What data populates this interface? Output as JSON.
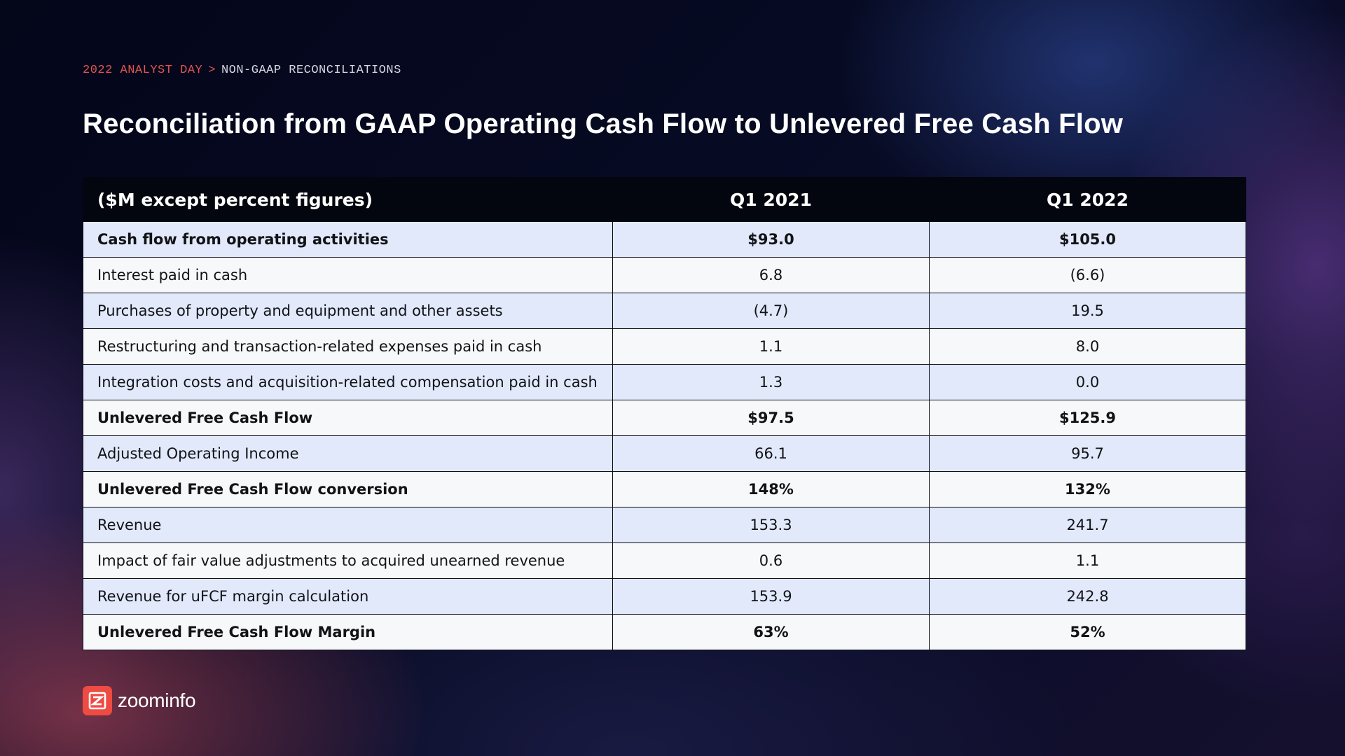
{
  "breadcrumb": {
    "section": "2022 ANALYST DAY",
    "separator": ">",
    "page": "NON-GAAP RECONCILIATIONS"
  },
  "title": "Reconciliation from GAAP Operating Cash Flow to Unlevered Free Cash Flow",
  "table": {
    "columns": [
      "($M except percent figures)",
      "Q1 2021",
      "Q1 2022"
    ],
    "rows": [
      {
        "label": "Cash flow from operating activities",
        "q1_2021": "$93.0",
        "q1_2022": "$105.0",
        "bold": true
      },
      {
        "label": "Interest paid in cash",
        "q1_2021": "6.8",
        "q1_2022": "(6.6)",
        "bold": false
      },
      {
        "label": "Purchases of property and equipment and other assets",
        "q1_2021": "(4.7)",
        "q1_2022": "19.5",
        "bold": false
      },
      {
        "label": "Restructuring and transaction-related expenses paid in cash",
        "q1_2021": "1.1",
        "q1_2022": "8.0",
        "bold": false
      },
      {
        "label": "Integration costs and acquisition-related compensation paid in cash",
        "q1_2021": "1.3",
        "q1_2022": "0.0",
        "bold": false
      },
      {
        "label": "Unlevered Free Cash Flow",
        "q1_2021": "$97.5",
        "q1_2022": "$125.9",
        "bold": true
      },
      {
        "label": "Adjusted Operating Income",
        "q1_2021": "66.1",
        "q1_2022": "95.7",
        "bold": false
      },
      {
        "label": "Unlevered Free Cash Flow conversion",
        "q1_2021": "148%",
        "q1_2022": "132%",
        "bold": true
      },
      {
        "label": "Revenue",
        "q1_2021": "153.3",
        "q1_2022": "241.7",
        "bold": false
      },
      {
        "label": "Impact of fair value adjustments to acquired unearned revenue",
        "q1_2021": "0.6",
        "q1_2022": "1.1",
        "bold": false
      },
      {
        "label": "Revenue for uFCF margin calculation",
        "q1_2021": "153.9",
        "q1_2022": "242.8",
        "bold": false
      },
      {
        "label": "Unlevered Free Cash Flow Margin",
        "q1_2021": "63%",
        "q1_2022": "52%",
        "bold": true
      }
    ]
  },
  "logo": {
    "icon": "zoominfo-z-logo-icon",
    "text": "zoominfo",
    "brand_color": "#ee4b43"
  },
  "colors": {
    "row_shaded": "#e1e9fb",
    "row_light": "#f7f8fa",
    "header_bg": "#03050f",
    "breadcrumb_accent": "#e0544f"
  }
}
